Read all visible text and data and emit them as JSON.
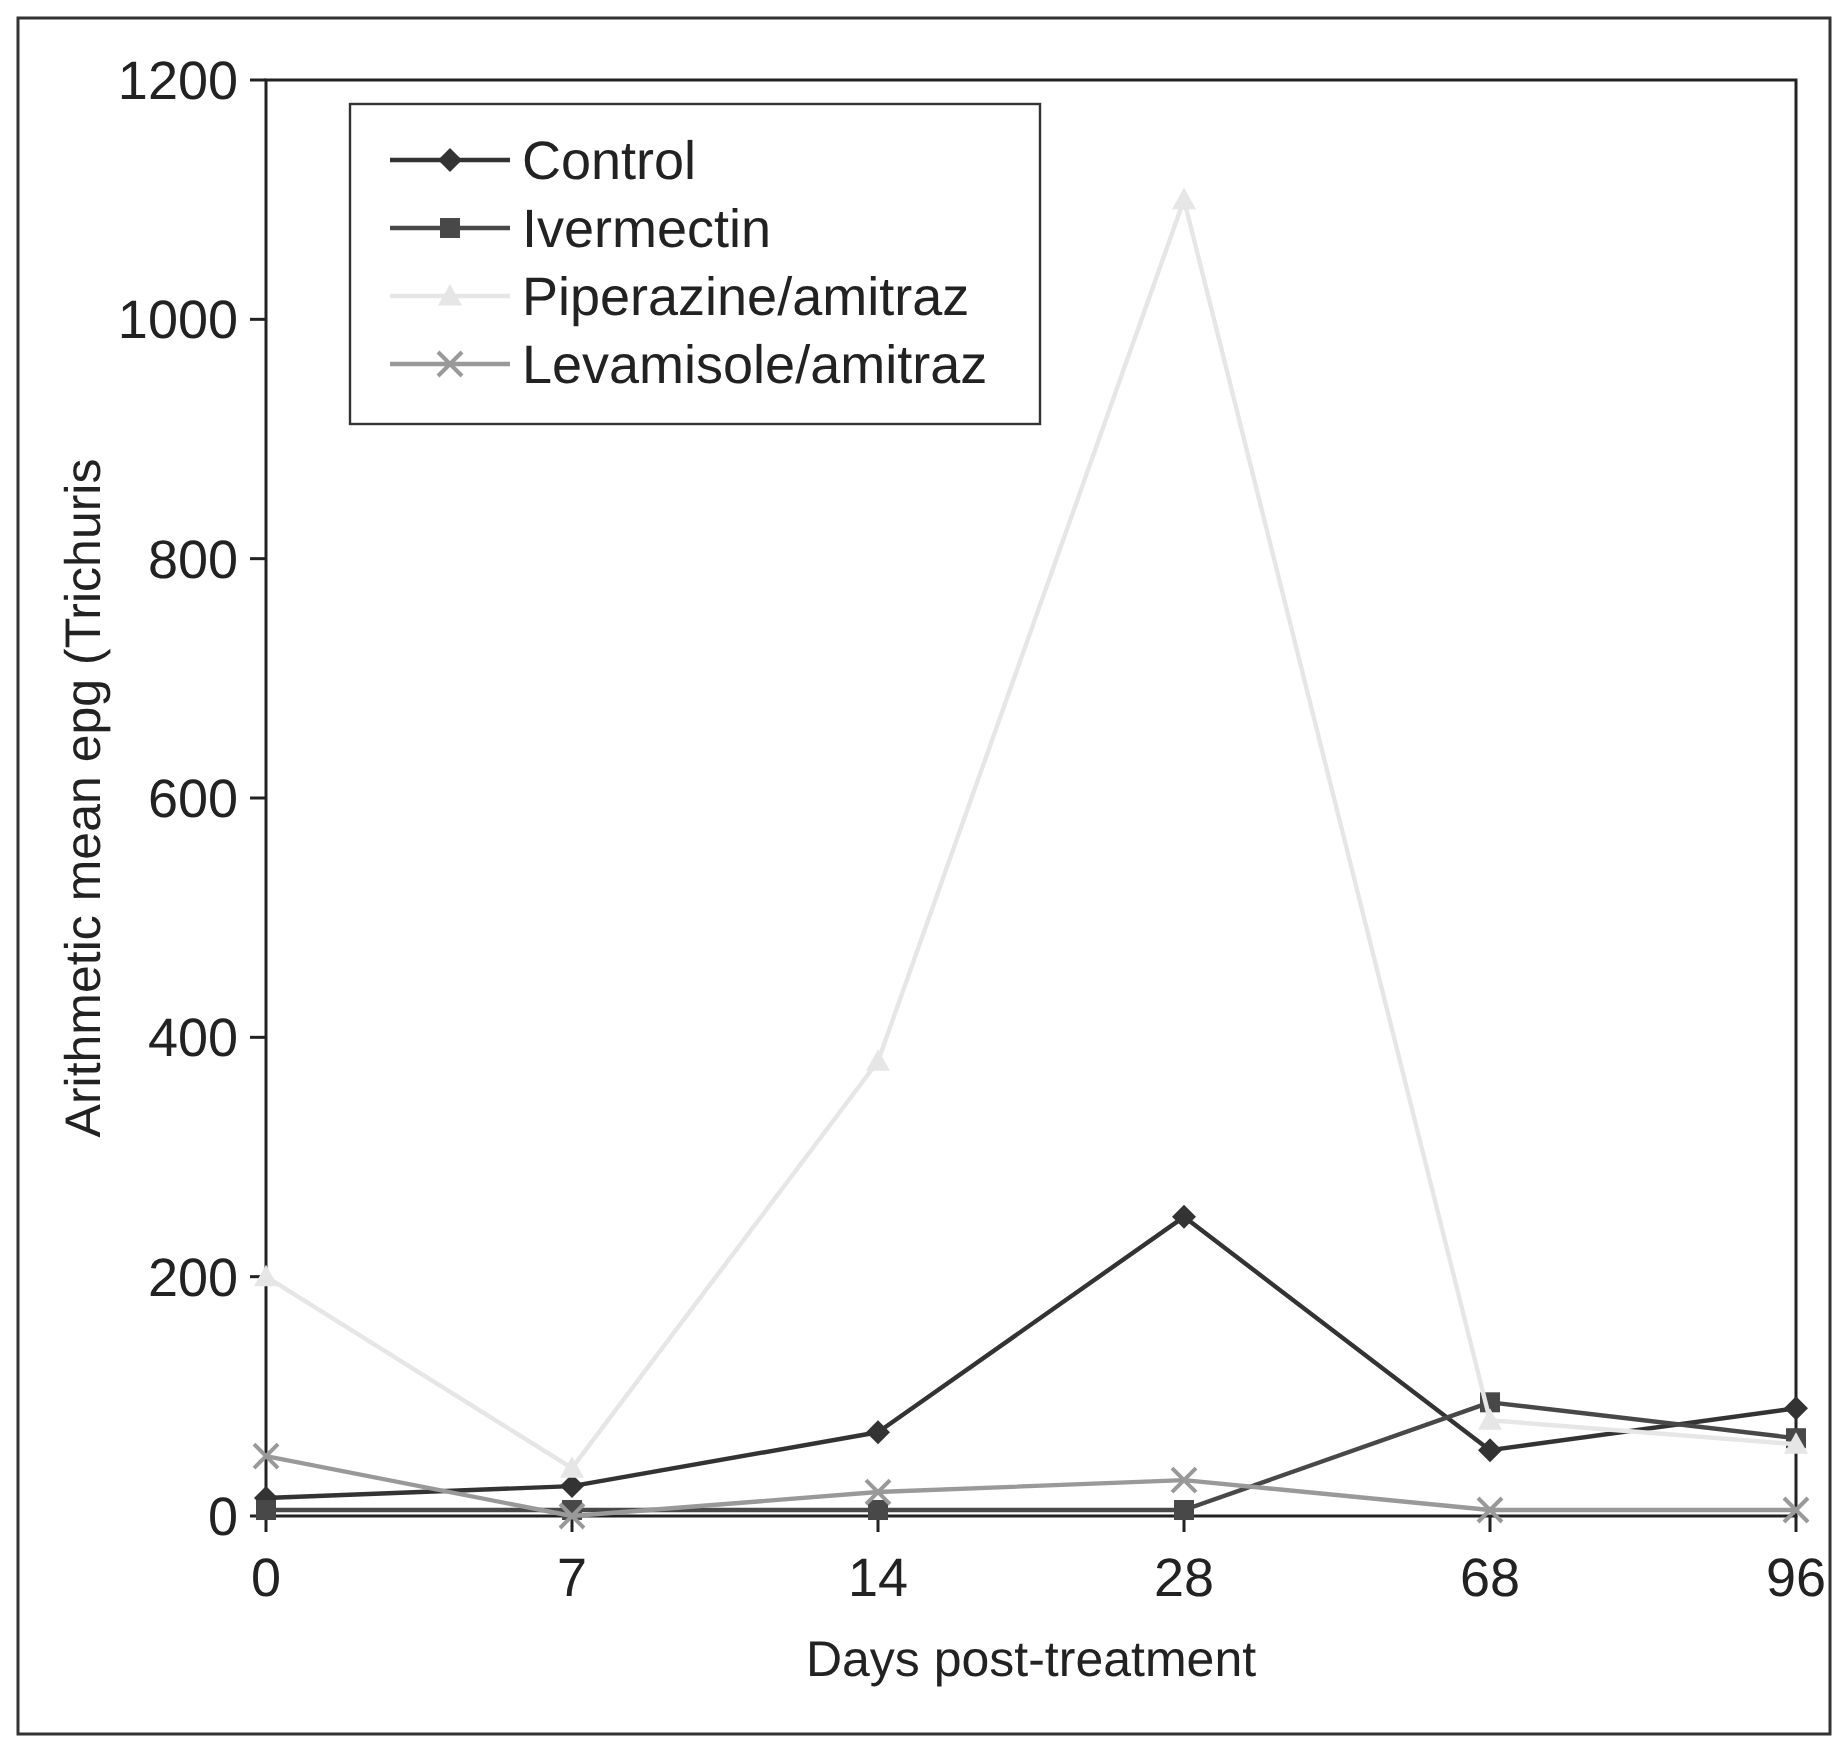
{
  "chart_data": {
    "type": "line",
    "xlabel": "Days post-treatment",
    "ylabel": "Arithmetic mean epg (Trichuris",
    "categories": [
      "0",
      "7",
      "14",
      "28",
      "68",
      "96"
    ],
    "ylim": [
      0,
      1200
    ],
    "yticks": [
      0,
      200,
      400,
      600,
      800,
      1000,
      1200
    ],
    "grid": false,
    "legend": "top left",
    "series": [
      {
        "name": "Control",
        "color": "#333333",
        "marker": "diamond",
        "values": [
          15,
          25,
          70,
          250,
          55,
          90
        ]
      },
      {
        "name": "Ivermectin",
        "color": "#484848",
        "marker": "square",
        "values": [
          5,
          5,
          5,
          5,
          95,
          65
        ]
      },
      {
        "name": "Piperazine/amitraz",
        "color": "#e6e6e6",
        "marker": "triangle",
        "values": [
          200,
          40,
          380,
          1100,
          80,
          60
        ]
      },
      {
        "name": "Levamisole/amitraz",
        "color": "#999999",
        "marker": "cross",
        "values": [
          50,
          0,
          20,
          30,
          5,
          5
        ]
      }
    ]
  }
}
